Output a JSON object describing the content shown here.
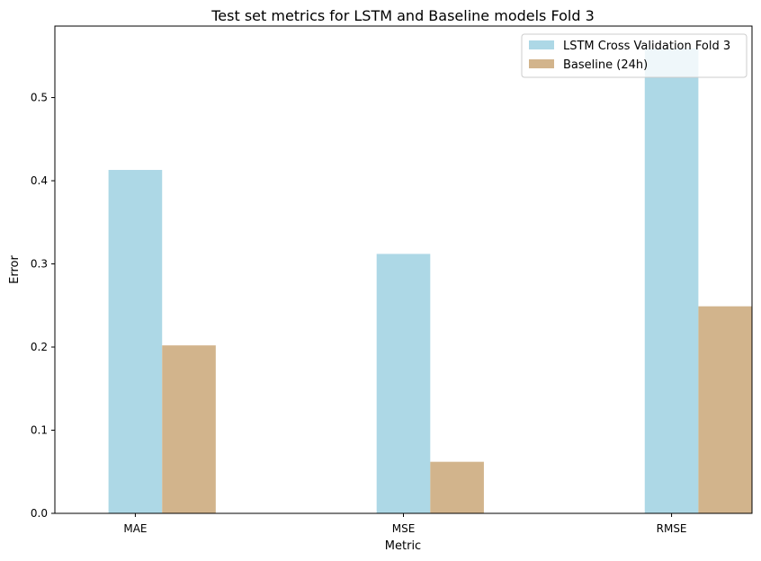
{
  "chart_data": {
    "type": "bar",
    "title": "Test set metrics for LSTM and Baseline models Fold 3",
    "xlabel": "Metric",
    "ylabel": "Error",
    "categories": [
      "MAE",
      "MSE",
      "RMSE"
    ],
    "series": [
      {
        "name": "LSTM Cross Validation Fold 3",
        "values": [
          0.413,
          0.312,
          0.559
        ],
        "color": "#add8e6"
      },
      {
        "name": "Baseline (24h)",
        "values": [
          0.202,
          0.062,
          0.249
        ],
        "color": "#d2b48c"
      }
    ],
    "ylim": [
      0,
      0.586
    ],
    "yticks": [
      "0.0",
      "0.1",
      "0.2",
      "0.3",
      "0.4",
      "0.5"
    ],
    "grid": false,
    "legend_position": "top-right"
  }
}
